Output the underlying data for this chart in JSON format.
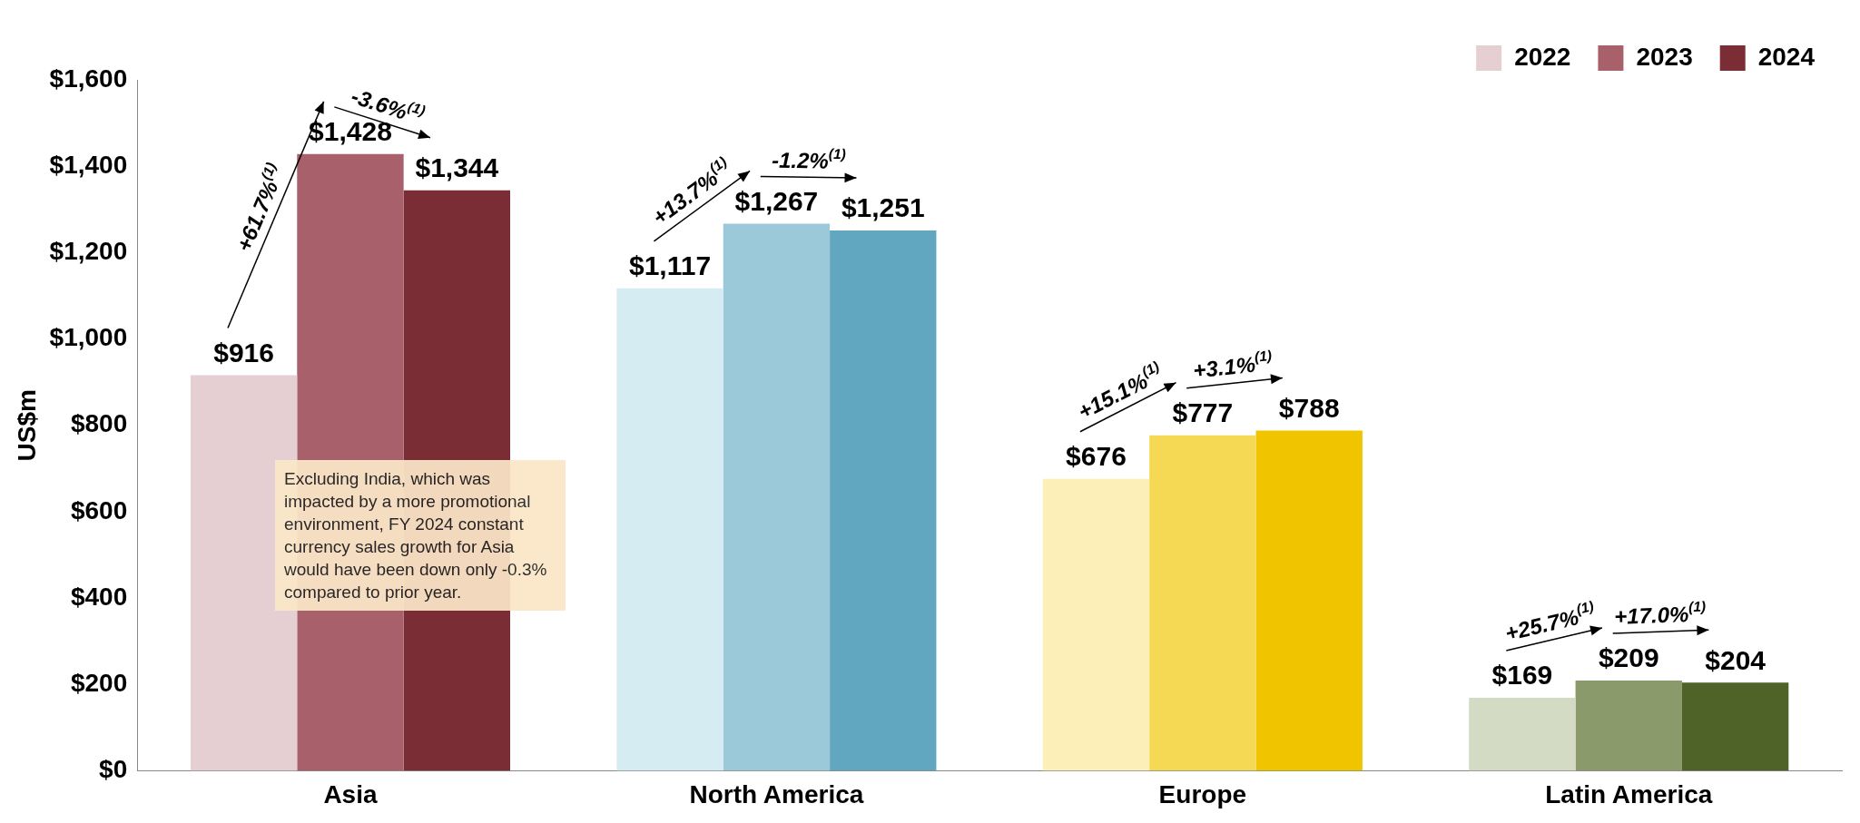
{
  "chart_data": {
    "type": "bar",
    "ylabel": "US$m",
    "categories": [
      "Asia",
      "North America",
      "Europe",
      "Latin America"
    ],
    "series": [
      {
        "name": "2022",
        "color": "#e6cfd2",
        "colors": [
          "#e6cfd2",
          "#d6ecf3",
          "#fcefb8",
          "#d3dbc4"
        ],
        "values": [
          916,
          1117,
          676,
          169
        ],
        "value_labels": [
          "$916",
          "$1,117",
          "$676",
          "$169"
        ]
      },
      {
        "name": "2023",
        "color": "#a8606a",
        "colors": [
          "#a8606a",
          "#9cc9da",
          "#f5d955",
          "#8a9a6a"
        ],
        "values": [
          1428,
          1267,
          777,
          209
        ],
        "value_labels": [
          "$1,428",
          "$1,267",
          "$777",
          "$209"
        ]
      },
      {
        "name": "2024",
        "color": "#7b2d35",
        "colors": [
          "#7b2d35",
          "#62a7c0",
          "#f0c500",
          "#4f6228"
        ],
        "values": [
          1344,
          1251,
          788,
          204
        ],
        "value_labels": [
          "$1,344",
          "$1,251",
          "$788",
          "$204"
        ]
      }
    ],
    "ylim": [
      0,
      1600
    ],
    "yticks": [
      {
        "value": 0,
        "label": "$0"
      },
      {
        "value": 200,
        "label": "$200"
      },
      {
        "value": 400,
        "label": "$400"
      },
      {
        "value": 600,
        "label": "$600"
      },
      {
        "value": 800,
        "label": "$800"
      },
      {
        "value": 1000,
        "label": "$1,000"
      },
      {
        "value": 1200,
        "label": "$1,200"
      },
      {
        "value": 1400,
        "label": "$1,400"
      },
      {
        "value": 1600,
        "label": "$1,600"
      }
    ],
    "grid": false,
    "legend": "top right",
    "annotations": [
      "+61.7%$^{(1)}$",
      "-3.6%$^{(1)}$",
      "+13.7%$^{(1)}$",
      "-1.2%$^{(1)}$",
      "+15.1%$^{(1)}$",
      "+3.1%$^{(1)}$",
      "+25.7%$^{(1)}$",
      "+17.0%$^{(1)}$",
      "Excluding India, which was impacted by a more promotional environment, FY 2024 constant currency sales growth for Asia would have been down only -0.3% compared to prior year."
    ]
  }
}
